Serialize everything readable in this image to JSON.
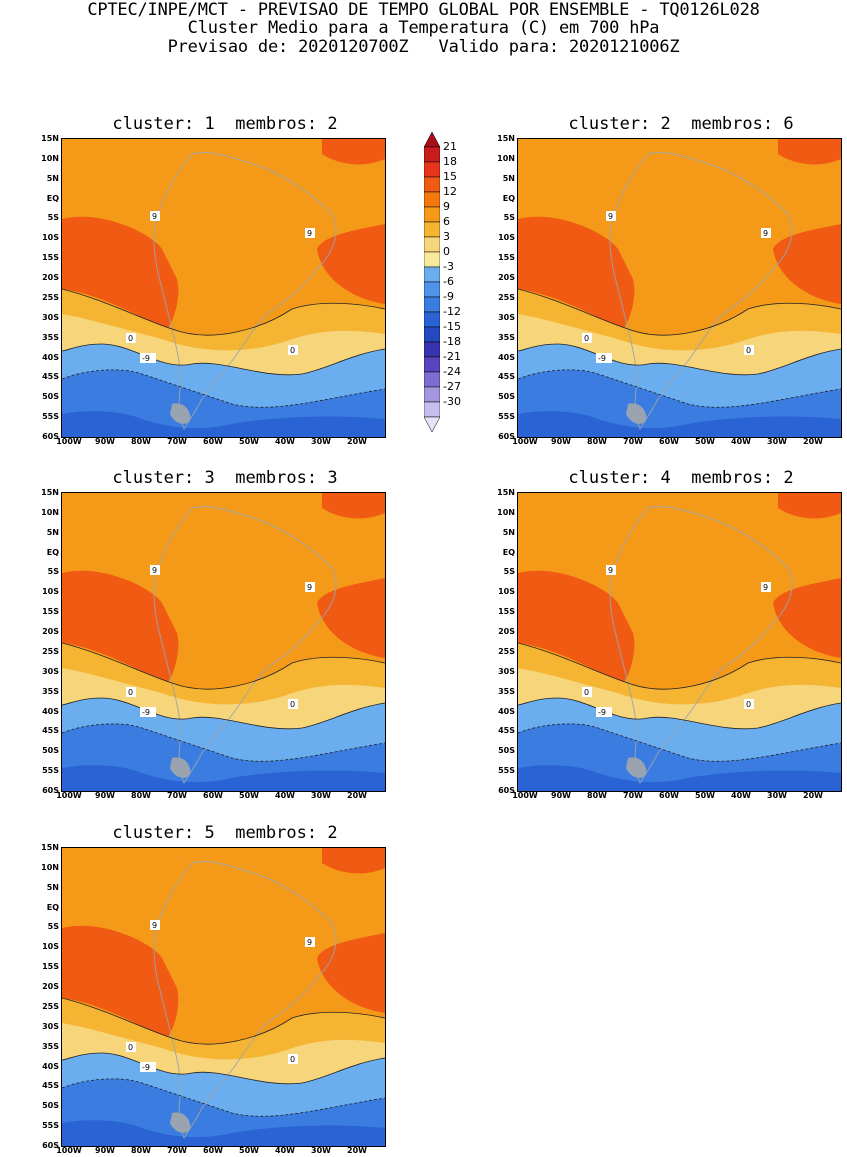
{
  "header": {
    "line1": "CPTEC/INPE/MCT - PREVISAO DE TEMPO GLOBAL POR ENSEMBLE - TQ0126L028",
    "line2": "Cluster Medio para a Temperatura (C) em 700 hPa",
    "line3": "Previsao de: 2020120700Z   Valido para: 2020121006Z"
  },
  "panels": [
    {
      "title": "cluster: 1  membros: 2"
    },
    {
      "title": "cluster: 2  membros: 6"
    },
    {
      "title": "cluster: 3  membros: 3"
    },
    {
      "title": "cluster: 4  membros: 2"
    },
    {
      "title": "cluster: 5  membros: 2"
    }
  ],
  "contour_labels": {
    "nine": "9",
    "zero": "0",
    "minus_nine": "-9"
  },
  "lat_labels": [
    "15N",
    "10N",
    "5N",
    "EQ",
    "5S",
    "10S",
    "15S",
    "20S",
    "25S",
    "30S",
    "35S",
    "40S",
    "45S",
    "50S",
    "55S",
    "60S"
  ],
  "lon_labels": [
    "100W",
    "90W",
    "80W",
    "70W",
    "60W",
    "50W",
    "40W",
    "30W",
    "20W"
  ],
  "colorbar": {
    "labels": [
      "21",
      "18",
      "15",
      "12",
      "9",
      "6",
      "3",
      "0",
      "-3",
      "-6",
      "-9",
      "-12",
      "-15",
      "-18",
      "-21",
      "-24",
      "-27",
      "-30"
    ],
    "colors": [
      "#a50f15",
      "#c81d1d",
      "#e8361c",
      "#f05a12",
      "#f5780e",
      "#f59a18",
      "#f5b533",
      "#f7d57a",
      "#fbe99b",
      "#6baef0",
      "#4f93ea",
      "#3a7ce0",
      "#2a63d4",
      "#2648c0",
      "#3a33b0",
      "#5a45c0",
      "#7f6cd3",
      "#a595e0",
      "#c7bdef",
      "#e8e3f8"
    ]
  }
}
